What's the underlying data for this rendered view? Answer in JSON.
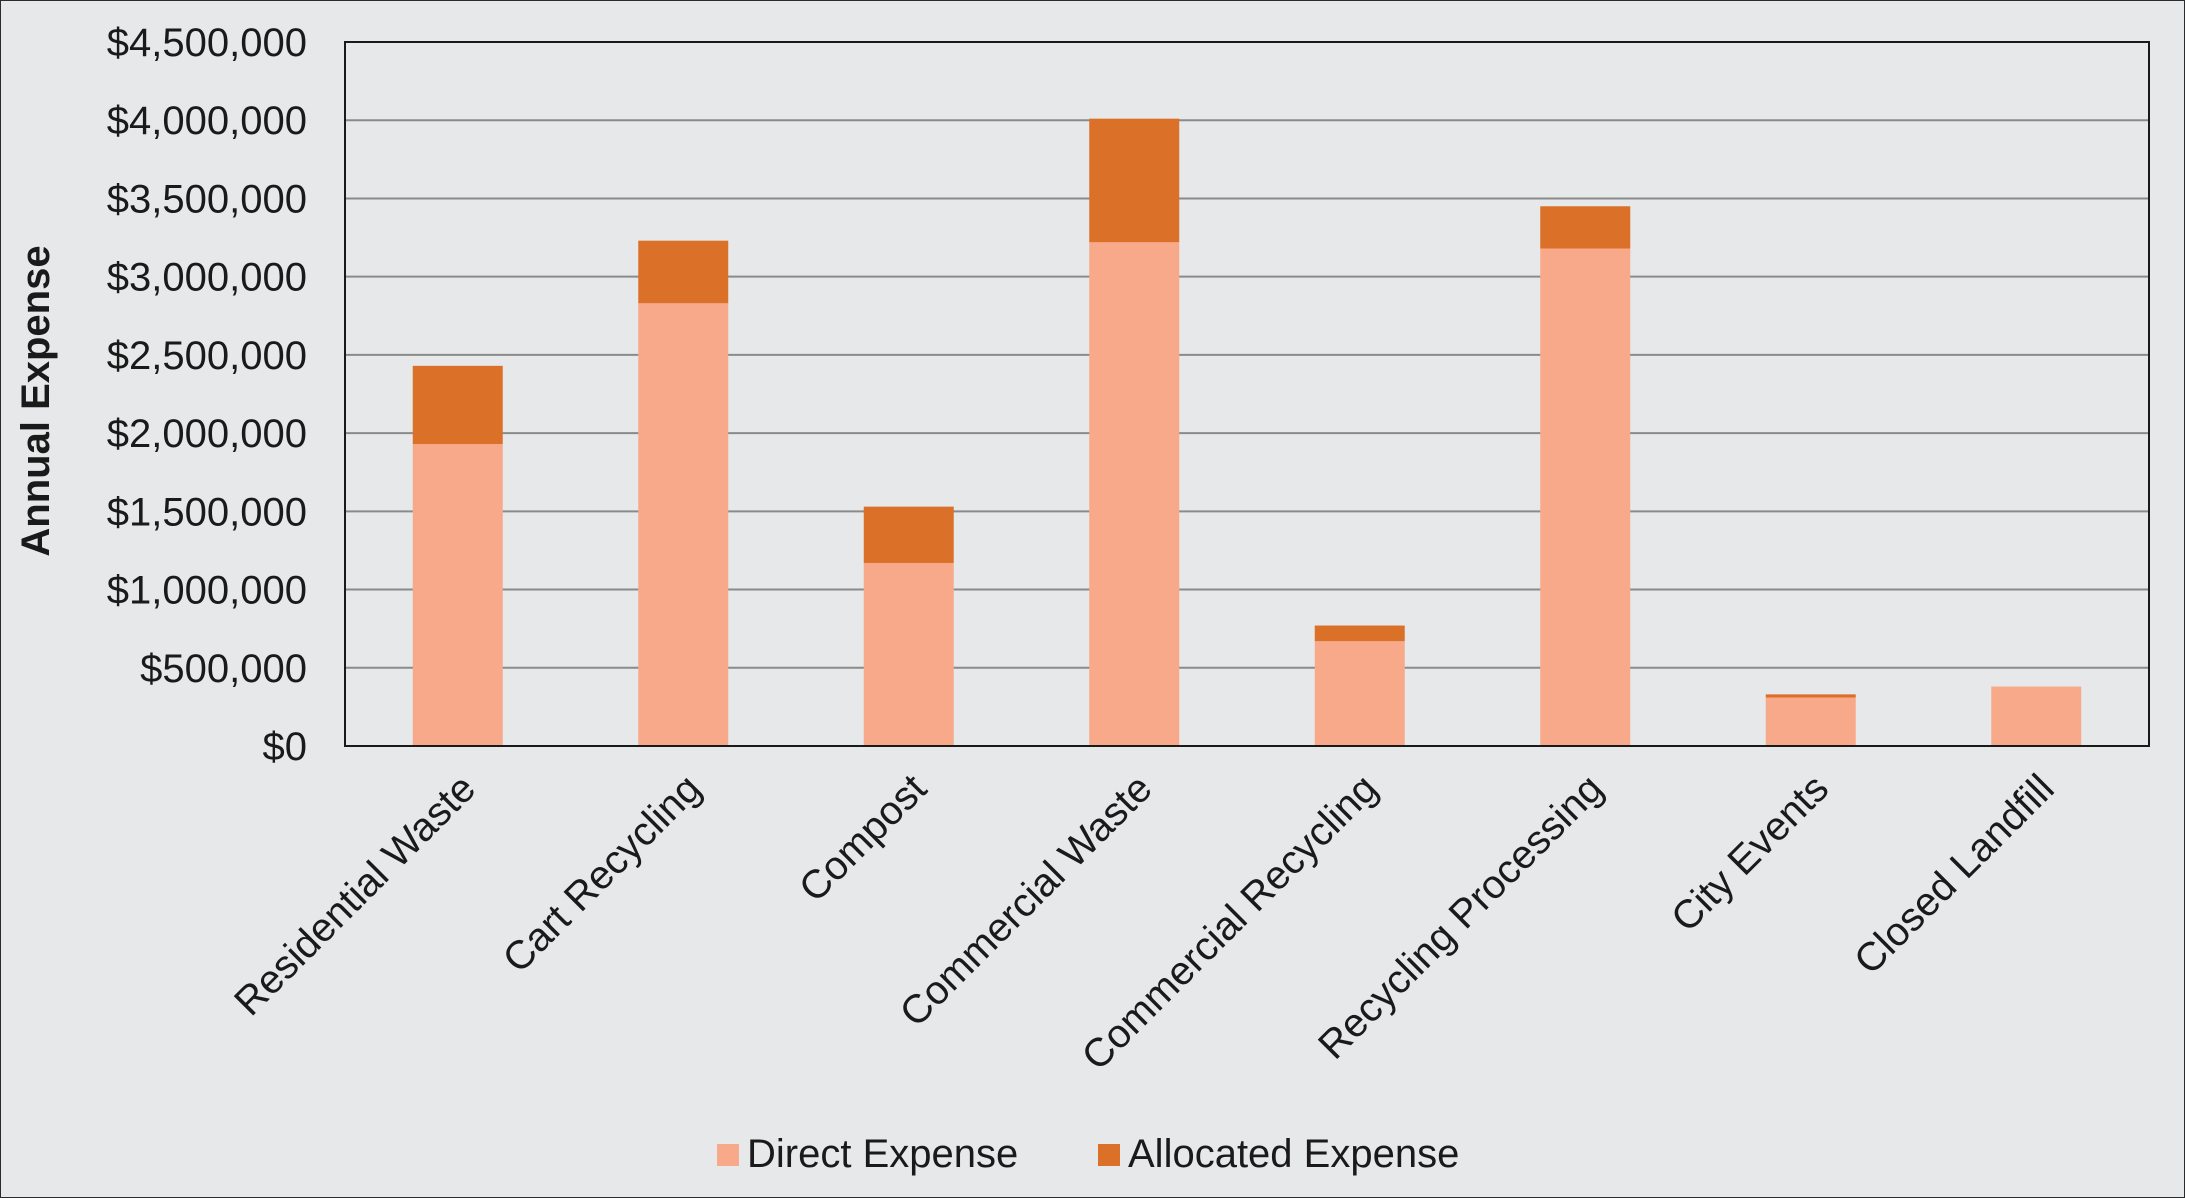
{
  "chart_data": {
    "type": "bar",
    "stacked": true,
    "ylabel": "Annual Expense",
    "xlabel": "",
    "ylim": [
      0,
      4500000
    ],
    "yticks": [
      0,
      500000,
      1000000,
      1500000,
      2000000,
      2500000,
      3000000,
      3500000,
      4000000,
      4500000
    ],
    "ytick_labels": [
      "$0",
      "$500,000",
      "$1,000,000",
      "$1,500,000",
      "$2,000,000",
      "$2,500,000",
      "$3,000,000",
      "$3,500,000",
      "$4,000,000",
      "$4,500,000"
    ],
    "categories": [
      "Residential Waste",
      "Cart Recycling",
      "Compost",
      "Commercial Waste",
      "Commercial Recycling",
      "Recycling Processing",
      "City Events",
      "Closed Landfill"
    ],
    "series": [
      {
        "name": "Direct Expense",
        "color": "#f7a98a",
        "values": [
          1930000,
          2830000,
          1170000,
          3220000,
          670000,
          3180000,
          310000,
          380000
        ]
      },
      {
        "name": "Allocated Expense",
        "color": "#db7029",
        "values": [
          500000,
          400000,
          360000,
          790000,
          100000,
          270000,
          20000,
          0
        ]
      }
    ],
    "grid": true,
    "legend_position": "bottom"
  }
}
